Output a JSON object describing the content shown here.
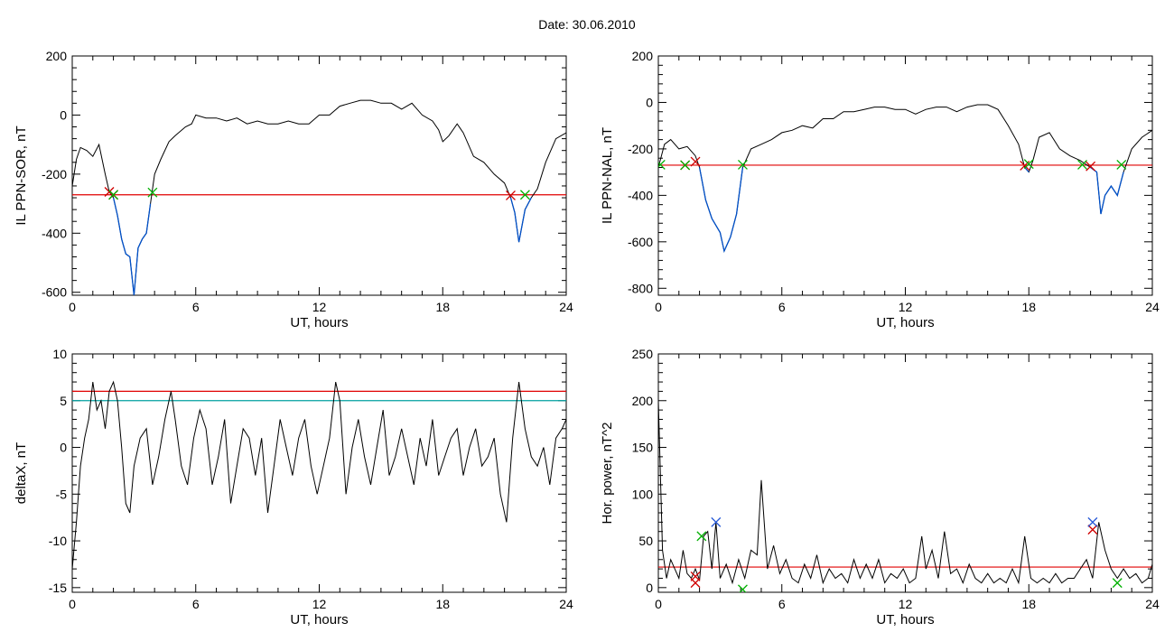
{
  "figure": {
    "date_label": "Date:  30.06.2010"
  },
  "colors": {
    "trace": "#000000",
    "below_threshold": "#0050c8",
    "threshold_red": "#e00000",
    "threshold_cyan": "#00a0a0",
    "marker_red": "#d00000",
    "marker_green": "#00b000",
    "marker_blue": "#2a5bd7"
  },
  "chart_data": [
    {
      "id": "ppn-sor",
      "type": "line",
      "xlabel": "UT, hours",
      "ylabel": "IL PPN-SOR, nT",
      "xlim": [
        0,
        24
      ],
      "ylim": [
        -610,
        200
      ],
      "xticks": [
        0,
        6,
        12,
        18,
        24
      ],
      "yticks": [
        -600,
        -400,
        -200,
        0,
        200
      ],
      "threshold": -270,
      "series": [
        {
          "x": [
            0.0,
            0.2,
            0.4,
            0.7,
            1.0,
            1.3,
            1.6,
            1.8,
            2.0,
            2.2,
            2.4,
            2.6,
            2.8,
            3.0,
            3.2,
            3.4,
            3.6,
            3.8,
            4.0,
            4.3,
            4.7,
            5.0,
            5.5,
            5.8,
            6.0,
            6.5,
            7.0,
            7.5,
            8.0,
            8.5,
            9.0,
            9.5,
            10.0,
            10.5,
            11.0,
            11.5,
            12.0,
            12.5,
            13.0,
            13.5,
            14.0,
            14.5,
            15.0,
            15.5,
            16.0,
            16.5,
            17.0,
            17.5,
            17.8,
            18.0,
            18.3,
            18.7,
            19.0,
            19.5,
            20.0,
            20.5,
            21.0,
            21.3,
            21.5,
            21.7,
            22.0,
            22.3,
            22.6,
            23.0,
            23.5,
            24.0
          ],
          "y": [
            -240,
            -150,
            -110,
            -120,
            -140,
            -100,
            -200,
            -260,
            -280,
            -340,
            -420,
            -470,
            -480,
            -610,
            -450,
            -420,
            -400,
            -300,
            -200,
            -150,
            -90,
            -70,
            -40,
            -30,
            0,
            -10,
            -10,
            -20,
            -10,
            -30,
            -20,
            -30,
            -30,
            -20,
            -30,
            -30,
            0,
            0,
            30,
            40,
            50,
            50,
            40,
            40,
            20,
            40,
            0,
            -20,
            -50,
            -90,
            -70,
            -30,
            -60,
            -140,
            -160,
            -200,
            -230,
            -280,
            -330,
            -430,
            -320,
            -280,
            -250,
            -160,
            -80,
            -60
          ]
        }
      ],
      "markers": [
        {
          "color": "red",
          "x": 1.8,
          "y": -260
        },
        {
          "color": "red",
          "x": 2.0,
          "y": -270
        },
        {
          "color": "green",
          "x": 2.0,
          "y": -270
        },
        {
          "color": "green",
          "x": 3.9,
          "y": -262
        },
        {
          "color": "red",
          "x": 21.3,
          "y": -272
        },
        {
          "color": "green",
          "x": 22.0,
          "y": -270
        }
      ]
    },
    {
      "id": "ppn-nal",
      "type": "line",
      "xlabel": "UT, hours",
      "ylabel": "IL PPN-NAL, nT",
      "xlim": [
        0,
        24
      ],
      "ylim": [
        -830,
        200
      ],
      "xticks": [
        0,
        6,
        12,
        18,
        24
      ],
      "yticks": [
        -800,
        -600,
        -400,
        -200,
        0,
        200
      ],
      "threshold": -270,
      "series": [
        {
          "x": [
            0.0,
            0.3,
            0.6,
            1.0,
            1.4,
            1.8,
            2.0,
            2.3,
            2.6,
            3.0,
            3.2,
            3.5,
            3.8,
            4.1,
            4.5,
            5.0,
            5.5,
            6.0,
            6.5,
            7.0,
            7.5,
            8.0,
            8.5,
            9.0,
            9.5,
            10.0,
            10.5,
            11.0,
            11.5,
            12.0,
            12.5,
            13.0,
            13.5,
            14.0,
            14.5,
            15.0,
            15.5,
            16.0,
            16.5,
            17.0,
            17.5,
            17.8,
            18.0,
            18.2,
            18.5,
            19.0,
            19.5,
            20.0,
            20.5,
            21.0,
            21.3,
            21.5,
            21.7,
            22.0,
            22.3,
            22.6,
            23.0,
            23.5,
            24.0
          ],
          "y": [
            -280,
            -180,
            -160,
            -200,
            -190,
            -230,
            -280,
            -420,
            -500,
            -560,
            -640,
            -580,
            -480,
            -280,
            -200,
            -180,
            -160,
            -130,
            -120,
            -100,
            -110,
            -70,
            -70,
            -40,
            -40,
            -30,
            -20,
            -20,
            -30,
            -30,
            -50,
            -30,
            -20,
            -20,
            -40,
            -20,
            -10,
            -10,
            -30,
            -100,
            -180,
            -280,
            -300,
            -250,
            -150,
            -130,
            -200,
            -230,
            -250,
            -280,
            -300,
            -480,
            -400,
            -360,
            -400,
            -300,
            -200,
            -150,
            -120
          ]
        }
      ],
      "markers": [
        {
          "color": "green",
          "x": 0.1,
          "y": -268
        },
        {
          "color": "red",
          "x": 1.3,
          "y": -270
        },
        {
          "color": "green",
          "x": 1.3,
          "y": -270
        },
        {
          "color": "red",
          "x": 1.8,
          "y": -255
        },
        {
          "color": "green",
          "x": 4.1,
          "y": -268
        },
        {
          "color": "red",
          "x": 17.8,
          "y": -272
        },
        {
          "color": "green",
          "x": 18.0,
          "y": -265
        },
        {
          "color": "green",
          "x": 20.6,
          "y": -268
        },
        {
          "color": "red",
          "x": 21.0,
          "y": -275
        },
        {
          "color": "green",
          "x": 22.5,
          "y": -268
        }
      ]
    },
    {
      "id": "deltax",
      "type": "line",
      "xlabel": "UT, hours",
      "ylabel": "deltaX, nT",
      "xlim": [
        0,
        24
      ],
      "ylim": [
        -15.5,
        10
      ],
      "xticks": [
        0,
        6,
        12,
        18,
        24
      ],
      "yticks": [
        -15,
        -10,
        -5,
        0,
        5,
        10
      ],
      "thresholds": [
        {
          "color": "red",
          "y": 6
        },
        {
          "color": "cyan",
          "y": 5
        }
      ],
      "series": [
        {
          "x": [
            0.0,
            0.2,
            0.4,
            0.6,
            0.8,
            1.0,
            1.2,
            1.4,
            1.6,
            1.8,
            2.0,
            2.2,
            2.4,
            2.6,
            2.8,
            3.0,
            3.3,
            3.6,
            3.9,
            4.2,
            4.5,
            4.8,
            5.0,
            5.3,
            5.6,
            5.9,
            6.2,
            6.5,
            6.8,
            7.1,
            7.4,
            7.7,
            8.0,
            8.3,
            8.6,
            8.9,
            9.2,
            9.5,
            9.8,
            10.1,
            10.4,
            10.7,
            11.0,
            11.3,
            11.6,
            11.9,
            12.2,
            12.5,
            12.8,
            13.0,
            13.3,
            13.6,
            13.9,
            14.2,
            14.5,
            14.8,
            15.1,
            15.4,
            15.7,
            16.0,
            16.3,
            16.6,
            16.9,
            17.2,
            17.5,
            17.8,
            18.1,
            18.4,
            18.7,
            19.0,
            19.3,
            19.6,
            19.9,
            20.2,
            20.5,
            20.8,
            21.1,
            21.4,
            21.7,
            22.0,
            22.3,
            22.6,
            22.9,
            23.2,
            23.5,
            23.8,
            24.0
          ],
          "y": [
            -13,
            -8,
            -2,
            1,
            3,
            7,
            4,
            5,
            2,
            6,
            7,
            5,
            0,
            -6,
            -7,
            -2,
            1,
            2,
            -4,
            -1,
            3,
            6,
            3,
            -2,
            -4,
            1,
            4,
            2,
            -4,
            -1,
            3,
            -6,
            -2,
            2,
            1,
            -3,
            1,
            -7,
            -2,
            3,
            0,
            -3,
            1,
            3,
            -2,
            -5,
            -2,
            1,
            7,
            5,
            -5,
            0,
            3,
            -1,
            -4,
            0,
            4,
            -3,
            -1,
            2,
            -1,
            -4,
            1,
            -2,
            3,
            -3,
            -1,
            1,
            2,
            -3,
            0,
            2,
            -2,
            -1,
            1,
            -5,
            -8,
            1,
            7,
            2,
            -1,
            -2,
            0,
            -4,
            1,
            2,
            3
          ]
        }
      ]
    },
    {
      "id": "hor-power",
      "type": "line",
      "xlabel": "UT, hours",
      "ylabel": "Hor. power, nT^2",
      "xlim": [
        0,
        24
      ],
      "ylim": [
        -5,
        250
      ],
      "xticks": [
        0,
        6,
        12,
        18,
        24
      ],
      "yticks": [
        0,
        50,
        100,
        150,
        200,
        250
      ],
      "threshold": 22,
      "series": [
        {
          "x": [
            0.0,
            0.2,
            0.4,
            0.6,
            0.8,
            1.0,
            1.2,
            1.4,
            1.6,
            1.8,
            2.0,
            2.2,
            2.4,
            2.6,
            2.8,
            3.0,
            3.3,
            3.6,
            3.9,
            4.2,
            4.5,
            4.8,
            5.0,
            5.3,
            5.6,
            5.9,
            6.2,
            6.5,
            6.8,
            7.1,
            7.4,
            7.7,
            8.0,
            8.3,
            8.6,
            8.9,
            9.2,
            9.5,
            9.8,
            10.1,
            10.4,
            10.7,
            11.0,
            11.3,
            11.6,
            11.9,
            12.2,
            12.5,
            12.8,
            13.0,
            13.3,
            13.6,
            13.9,
            14.2,
            14.5,
            14.8,
            15.1,
            15.4,
            15.7,
            16.0,
            16.3,
            16.6,
            16.9,
            17.2,
            17.5,
            17.8,
            18.1,
            18.4,
            18.7,
            19.0,
            19.3,
            19.6,
            19.9,
            20.2,
            20.5,
            20.8,
            21.1,
            21.4,
            21.7,
            22.0,
            22.3,
            22.6,
            22.9,
            23.2,
            23.5,
            23.8,
            24.0
          ],
          "y": [
            200,
            40,
            10,
            30,
            20,
            10,
            40,
            15,
            10,
            20,
            8,
            55,
            60,
            20,
            70,
            10,
            25,
            5,
            30,
            10,
            40,
            35,
            115,
            20,
            45,
            15,
            30,
            10,
            5,
            25,
            10,
            35,
            5,
            20,
            10,
            15,
            5,
            30,
            10,
            25,
            10,
            30,
            5,
            15,
            10,
            20,
            5,
            10,
            55,
            20,
            40,
            10,
            60,
            15,
            20,
            5,
            25,
            10,
            5,
            15,
            5,
            10,
            5,
            20,
            5,
            55,
            10,
            5,
            10,
            5,
            15,
            5,
            10,
            10,
            20,
            30,
            10,
            70,
            40,
            20,
            10,
            20,
            10,
            15,
            5,
            10,
            25
          ]
        }
      ],
      "markers": [
        {
          "color": "red",
          "x": 1.8,
          "y": 12
        },
        {
          "color": "red",
          "x": 1.8,
          "y": 5
        },
        {
          "color": "green",
          "x": 2.1,
          "y": 55
        },
        {
          "color": "blue",
          "x": 2.8,
          "y": 70
        },
        {
          "color": "green",
          "x": 4.1,
          "y": -2
        },
        {
          "color": "red",
          "x": 21.1,
          "y": 62
        },
        {
          "color": "blue",
          "x": 21.1,
          "y": 70
        },
        {
          "color": "green",
          "x": 22.3,
          "y": 5
        }
      ]
    }
  ]
}
